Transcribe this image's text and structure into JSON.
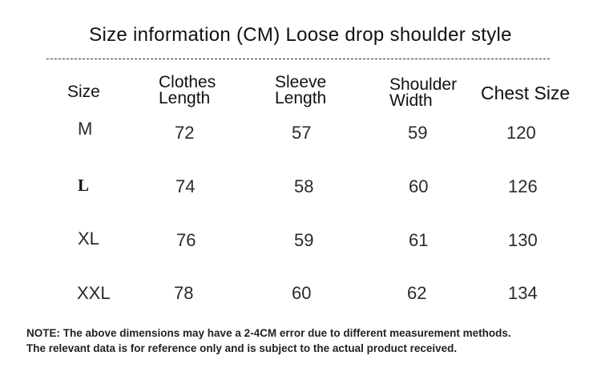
{
  "title": "Size information (CM) Loose drop shoulder style",
  "headers": {
    "size": "Size",
    "clothes_length": "Clothes\nLength",
    "sleeve_length": "Sleeve\nLength",
    "shoulder_width": "Shoulder\nWidth",
    "chest_size": "Chest Size"
  },
  "rows": [
    {
      "size": "M",
      "clothes_length": "72",
      "sleeve_length": "57",
      "shoulder_width": "59",
      "chest_size": "120"
    },
    {
      "size": "L",
      "clothes_length": "74",
      "sleeve_length": "58",
      "shoulder_width": "60",
      "chest_size": "126"
    },
    {
      "size": "XL",
      "clothes_length": "76",
      "sleeve_length": "59",
      "shoulder_width": "61",
      "chest_size": "130"
    },
    {
      "size": "XXL",
      "clothes_length": "78",
      "sleeve_length": "60",
      "shoulder_width": "62",
      "chest_size": "134"
    }
  ],
  "note": {
    "line1": "NOTE: The above dimensions may have a 2-4CM error due to different measurement methods.",
    "line2": "The relevant data is for reference only and is subject to the actual product received."
  }
}
